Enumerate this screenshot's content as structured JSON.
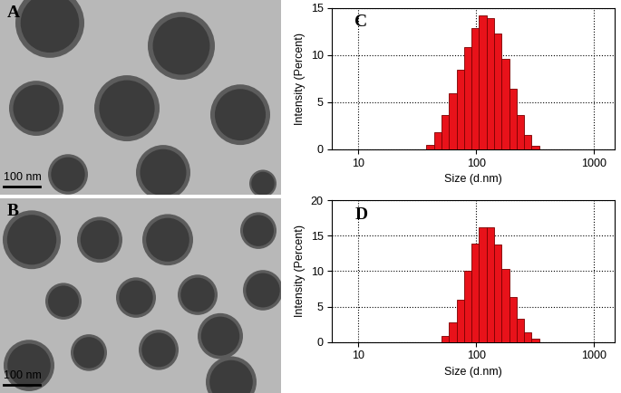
{
  "images": [
    {
      "panel": "A",
      "scale_bar": "100 nm"
    },
    {
      "panel": "B",
      "scale_bar": "100 nm"
    }
  ],
  "chart_data": [
    {
      "type": "histogram",
      "panel": "C",
      "xlabel": "Size (d.nm)",
      "ylabel": "Intensity (Percent)",
      "bins": [
        37.84,
        43.82,
        50.75,
        58.77,
        68.06,
        78.82,
        91.28,
        105.7,
        122.4,
        141.8,
        164.2,
        190.1,
        220.2,
        255.0,
        295.3,
        342.0
      ],
      "counts": [
        0.5,
        1.8,
        3.6,
        5.9,
        8.4,
        10.8,
        12.9,
        14.2,
        13.9,
        12.3,
        9.6,
        6.4,
        3.6,
        1.5,
        0.4
      ],
      "color": "#e8121a",
      "log": "x",
      "xlim": [
        6,
        1500
      ],
      "xticks": [
        10,
        100,
        1000
      ],
      "ylim": [
        0,
        15
      ],
      "yticks": [
        0,
        5,
        10,
        15
      ],
      "grid": true
    },
    {
      "type": "histogram",
      "panel": "D",
      "xlabel": "Size (d.nm)",
      "ylabel": "Intensity (Percent)",
      "bins": [
        50.75,
        58.77,
        68.06,
        78.82,
        91.28,
        105.7,
        122.4,
        141.8,
        164.2,
        190.1,
        220.2,
        255.0,
        295.3,
        342.0
      ],
      "counts": [
        0.8,
        2.7,
        5.9,
        10.0,
        13.9,
        16.2,
        16.2,
        13.8,
        10.3,
        6.4,
        3.3,
        1.3,
        0.4
      ],
      "color": "#e8121a",
      "log": "x",
      "xlim": [
        6,
        1500
      ],
      "xticks": [
        10,
        100,
        1000
      ],
      "ylim": [
        0,
        20
      ],
      "yticks": [
        0,
        5,
        10,
        15,
        20
      ],
      "grid": true
    }
  ]
}
